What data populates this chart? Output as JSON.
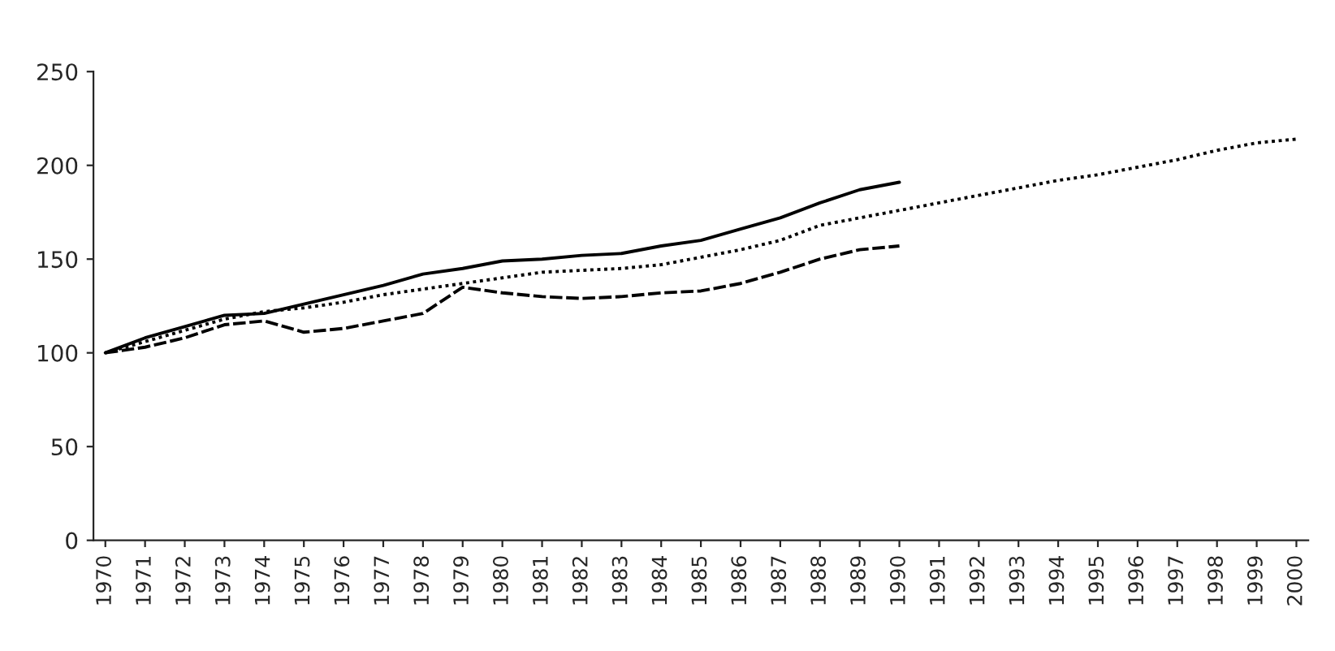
{
  "chart_data": {
    "type": "line",
    "categories": [
      "1970",
      "1971",
      "1972",
      "1973",
      "1974",
      "1975",
      "1976",
      "1977",
      "1978",
      "1979",
      "1980",
      "1981",
      "1982",
      "1983",
      "1984",
      "1985",
      "1986",
      "1987",
      "1988",
      "1989",
      "1990",
      "1991",
      "1992",
      "1993",
      "1994",
      "1995",
      "1996",
      "1997",
      "1998",
      "1999",
      "2000"
    ],
    "ylim": [
      0,
      250
    ],
    "yticks": [
      0,
      50,
      100,
      150,
      200,
      250
    ],
    "grid": false,
    "marker": "none",
    "series": [
      {
        "color": "#000000",
        "line_style": "solid",
        "values": [
          100,
          108,
          114,
          120,
          121,
          126,
          131,
          136,
          142,
          145,
          149,
          150,
          152,
          153,
          157,
          160,
          166,
          172,
          180,
          187,
          191,
          null,
          null,
          null,
          null,
          null,
          null,
          null,
          null,
          null,
          null
        ]
      },
      {
        "color": "#000000",
        "line_style": "dashed",
        "values": [
          100,
          103,
          108,
          115,
          117,
          111,
          113,
          117,
          121,
          135,
          132,
          130,
          129,
          130,
          132,
          133,
          137,
          143,
          150,
          155,
          157,
          null,
          null,
          null,
          null,
          null,
          null,
          null,
          null,
          null,
          null
        ]
      },
      {
        "color": "#000000",
        "line_style": "dotted",
        "values": [
          100,
          106,
          112,
          118,
          122,
          124,
          127,
          131,
          134,
          137,
          140,
          143,
          144,
          145,
          147,
          151,
          155,
          160,
          168,
          172,
          176,
          180,
          184,
          188,
          192,
          195,
          199,
          203,
          208,
          212,
          214
        ]
      }
    ]
  }
}
